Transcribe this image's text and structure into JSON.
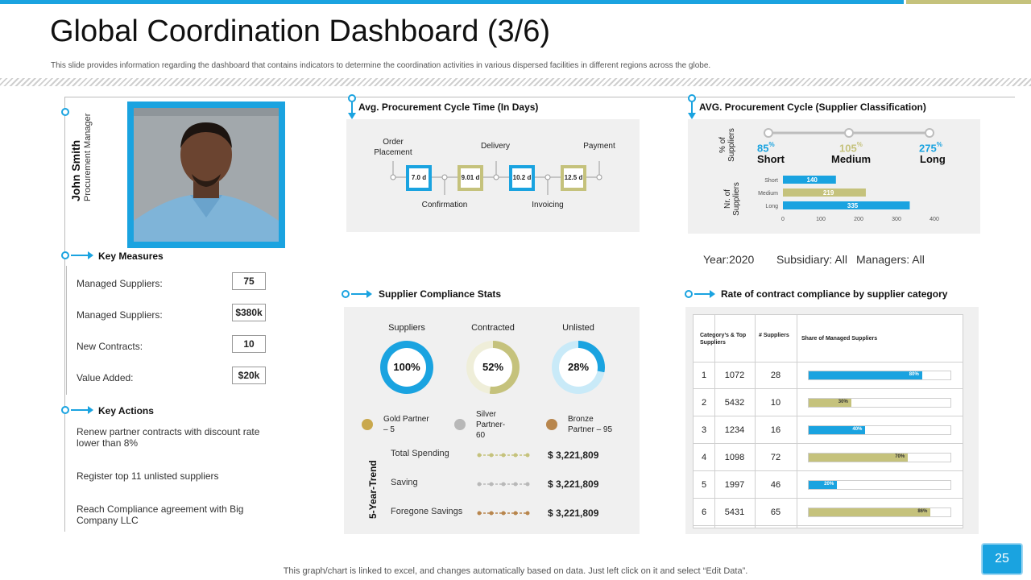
{
  "title": "Global Coordination Dashboard (3/6)",
  "subtitle": "This slide provides information regarding the dashboard  that contains indicators to determine the coordination activities in various dispersed facilities in different regions across the globe.",
  "profile": {
    "name": "John Smith",
    "role": "Procurement Manager"
  },
  "key_measures": {
    "heading": "Key Measures",
    "items": [
      {
        "label": "Managed Suppliers:",
        "value": "75"
      },
      {
        "label": "Managed Suppliers:",
        "value": "$380k"
      },
      {
        "label": "New Contracts:",
        "value": "10"
      },
      {
        "label": "Value Added:",
        "value": "$20k"
      }
    ]
  },
  "key_actions": {
    "heading": "Key Actions",
    "items": [
      "Renew partner contracts with discount rate lower than 8%",
      "Register top 11 unlisted suppliers",
      "Reach Compliance agreement with Big Company LLC"
    ]
  },
  "cycle_time": {
    "heading": "Avg. Procurement Cycle Time (In Days)",
    "top_labels": [
      "Order Placement",
      "Delivery",
      "Payment"
    ],
    "bottom_labels": [
      "Confirmation",
      "Invoicing"
    ],
    "boxes": [
      {
        "value": "7.0 d",
        "color": "#1aa3e0"
      },
      {
        "value": "9.01  d",
        "color": "#c5c27c"
      },
      {
        "value": "10.2  d",
        "color": "#1aa3e0"
      },
      {
        "value": "12.5  d",
        "color": "#c5c27c"
      }
    ]
  },
  "supplier_classification": {
    "heading": "AVG. Procurement Cycle (Supplier Classification)",
    "pct_axis_label": "% of Suppliers",
    "nr_axis_label": "Nr. of Suppliers",
    "pct_suffix": "%",
    "classes": [
      {
        "pct": "85",
        "label": "Short",
        "color": "#1aa3e0"
      },
      {
        "pct": "105",
        "label": "Medium",
        "color": "#c5c27c"
      },
      {
        "pct": "275",
        "label": "Long",
        "color": "#1aa3e0"
      }
    ]
  },
  "chart_data": {
    "type": "bar",
    "orientation": "horizontal",
    "categories": [
      "Short",
      "Medium",
      "Long"
    ],
    "values": [
      140,
      219,
      335
    ],
    "colors": [
      "#1aa3e0",
      "#c5c27c",
      "#1aa3e0"
    ],
    "xlim": [
      0,
      400
    ],
    "xticks": [
      "0",
      "100",
      "200",
      "300",
      "400"
    ],
    "ylabel": "Nr. of Suppliers",
    "title": "",
    "grid": false
  },
  "filters": {
    "year": "Year:2020",
    "subsidiary": "Subsidiary: All",
    "managers": "Managers: All"
  },
  "compliance_stats": {
    "heading": "Supplier Compliance Stats",
    "donuts": [
      {
        "label": "Suppliers",
        "value": "100%",
        "fraction": 1.0,
        "color": "#1aa3e0",
        "track": "#c9eaf8"
      },
      {
        "label": "Contracted",
        "value": "52%",
        "fraction": 0.52,
        "color": "#c5c27c",
        "track": "#efeed9"
      },
      {
        "label": "Unlisted",
        "value": "28%",
        "fraction": 0.28,
        "color": "#1aa3e0",
        "track": "#c9eaf8"
      }
    ],
    "partners": [
      {
        "label": "Gold Partner – 5",
        "color": "#c9a84d"
      },
      {
        "label": "Silver Partner-60",
        "color": "#b8b8b8"
      },
      {
        "label": "Bronze Partner – 95",
        "color": "#b8864d"
      }
    ],
    "trend_axis_label": "5-Year-Trend",
    "trends": [
      {
        "label": "Total Spending",
        "value": "$ 3,221,809",
        "color": "#c5c27c"
      },
      {
        "label": "Saving",
        "value": "$ 3,221,809",
        "color": "#b8b8b8"
      },
      {
        "label": "Foregone Savings",
        "value": "$ 3,221,809",
        "color": "#b8864d"
      }
    ]
  },
  "contract_compliance": {
    "heading": "Rate of contract compliance by supplier category",
    "columns": [
      "Category’s & Top Suppliers",
      "# Suppliers",
      "Share of Managed Suppliers"
    ],
    "rows": [
      {
        "idx": "1",
        "top": "1072",
        "count": "28",
        "share": 0.8,
        "share_label": "80%",
        "color": "#1aa3e0"
      },
      {
        "idx": "2",
        "top": "5432",
        "count": "10",
        "share": 0.3,
        "share_label": "30%",
        "color": "#c5c27c"
      },
      {
        "idx": "3",
        "top": "1234",
        "count": "16",
        "share": 0.4,
        "share_label": "40%",
        "color": "#1aa3e0"
      },
      {
        "idx": "4",
        "top": "1098",
        "count": "72",
        "share": 0.7,
        "share_label": "70%",
        "color": "#c5c27c"
      },
      {
        "idx": "5",
        "top": "1997",
        "count": "46",
        "share": 0.2,
        "share_label": "20%",
        "color": "#1aa3e0"
      },
      {
        "idx": "6",
        "top": "5431",
        "count": "65",
        "share": 0.86,
        "share_label": "86%",
        "color": "#c5c27c"
      }
    ]
  },
  "page_number": "25",
  "footer": "This graph/chart is linked to excel,  and changes automatically based on data. Just left click on it and select “Edit Data”."
}
